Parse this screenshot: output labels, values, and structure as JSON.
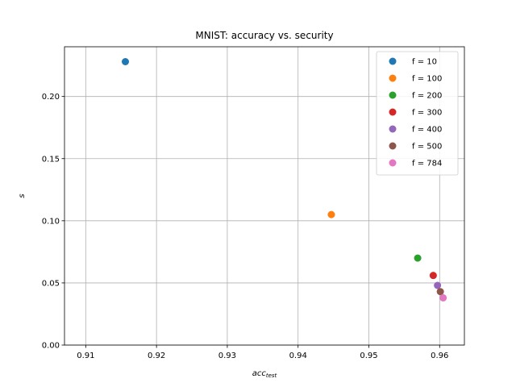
{
  "chart_data": {
    "type": "scatter",
    "title": "MNIST: accuracy vs. security",
    "xlabel": "acc",
    "xlabel_sub": "test",
    "ylabel": "s",
    "xlim": [
      0.907,
      0.9635
    ],
    "ylim": [
      0.0,
      0.24
    ],
    "xticks": [
      0.91,
      0.92,
      0.93,
      0.94,
      0.95,
      0.96
    ],
    "xtick_labels": [
      "0.91",
      "0.92",
      "0.93",
      "0.94",
      "0.95",
      "0.96"
    ],
    "yticks": [
      0.0,
      0.05,
      0.1,
      0.15,
      0.2
    ],
    "ytick_labels": [
      "0.00",
      "0.05",
      "0.10",
      "0.15",
      "0.20"
    ],
    "grid": true,
    "legend_position": "top-right",
    "series": [
      {
        "name": "f = 10",
        "color": "#1f77b4",
        "x": [
          0.9156
        ],
        "y": [
          0.228
        ]
      },
      {
        "name": "f = 100",
        "color": "#ff7f0e",
        "x": [
          0.9447
        ],
        "y": [
          0.105
        ]
      },
      {
        "name": "f = 200",
        "color": "#2ca02c",
        "x": [
          0.9569
        ],
        "y": [
          0.07
        ]
      },
      {
        "name": "f = 300",
        "color": "#d62728",
        "x": [
          0.9591
        ],
        "y": [
          0.056
        ]
      },
      {
        "name": "f = 400",
        "color": "#9467bd",
        "x": [
          0.9597
        ],
        "y": [
          0.048
        ]
      },
      {
        "name": "f = 500",
        "color": "#8c564b",
        "x": [
          0.9601
        ],
        "y": [
          0.043
        ]
      },
      {
        "name": "f = 784",
        "color": "#e377c2",
        "x": [
          0.9605
        ],
        "y": [
          0.038
        ]
      }
    ]
  }
}
